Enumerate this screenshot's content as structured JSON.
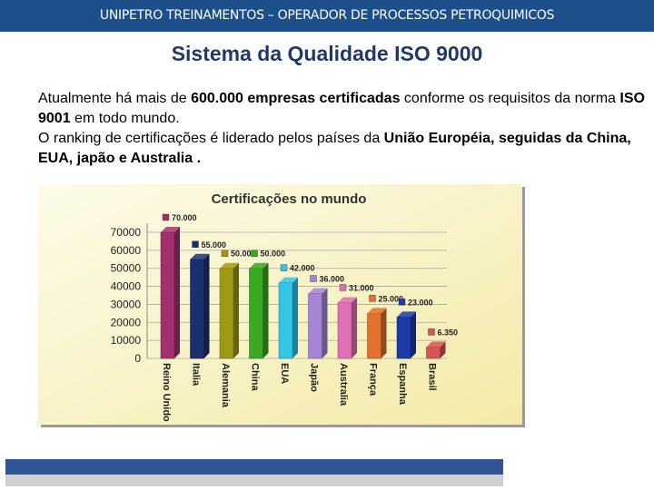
{
  "header": {
    "text": "UNIPETRO TREINAMENTOS – OPERADOR DE PROCESSOS PETROQUIMICOS"
  },
  "title": "Sistema da Qualidade ISO 9000",
  "paragraphs": [
    {
      "runs": [
        {
          "text": "Atualmente há mais de ",
          "bold": false
        },
        {
          "text": "600.000 empresas certificadas",
          "bold": true
        },
        {
          "text": " conforme os requisitos da norma ",
          "bold": false
        },
        {
          "text": "ISO 9001",
          "bold": true
        },
        {
          "text": " em todo mundo.",
          "bold": false
        }
      ]
    },
    {
      "runs": [
        {
          "text": "O  ranking de certificações é liderado pelos países da ",
          "bold": false
        },
        {
          "text": "União Européia, seguidas da China, EUA, japão e Australia .",
          "bold": true
        }
      ]
    }
  ],
  "chart_data": {
    "type": "bar",
    "title": "Certificações no mundo",
    "categories": [
      "Reino Unido",
      "Italia",
      "Alemania",
      "China",
      "EUA",
      "Japão",
      "Australia",
      "França",
      "Espanha",
      "Brasil"
    ],
    "values": [
      70000,
      55000,
      50000,
      50000,
      42000,
      36000,
      31000,
      25000,
      23000,
      6350
    ],
    "value_labels": [
      "70.000",
      "55.000",
      "50.000",
      "50.000",
      "42.000",
      "36.000",
      "31.000",
      "25.000",
      "23.000",
      "6.350"
    ],
    "colors": [
      "#a3306c",
      "#1c2f6e",
      "#9c9a12",
      "#3aa822",
      "#32c6e6",
      "#a585d6",
      "#e070b4",
      "#e2702e",
      "#1b3ca8",
      "#d65656"
    ],
    "ylim": [
      0,
      70000
    ],
    "yticks": [
      0,
      10000,
      20000,
      30000,
      40000,
      50000,
      60000,
      70000
    ],
    "grid": true
  }
}
